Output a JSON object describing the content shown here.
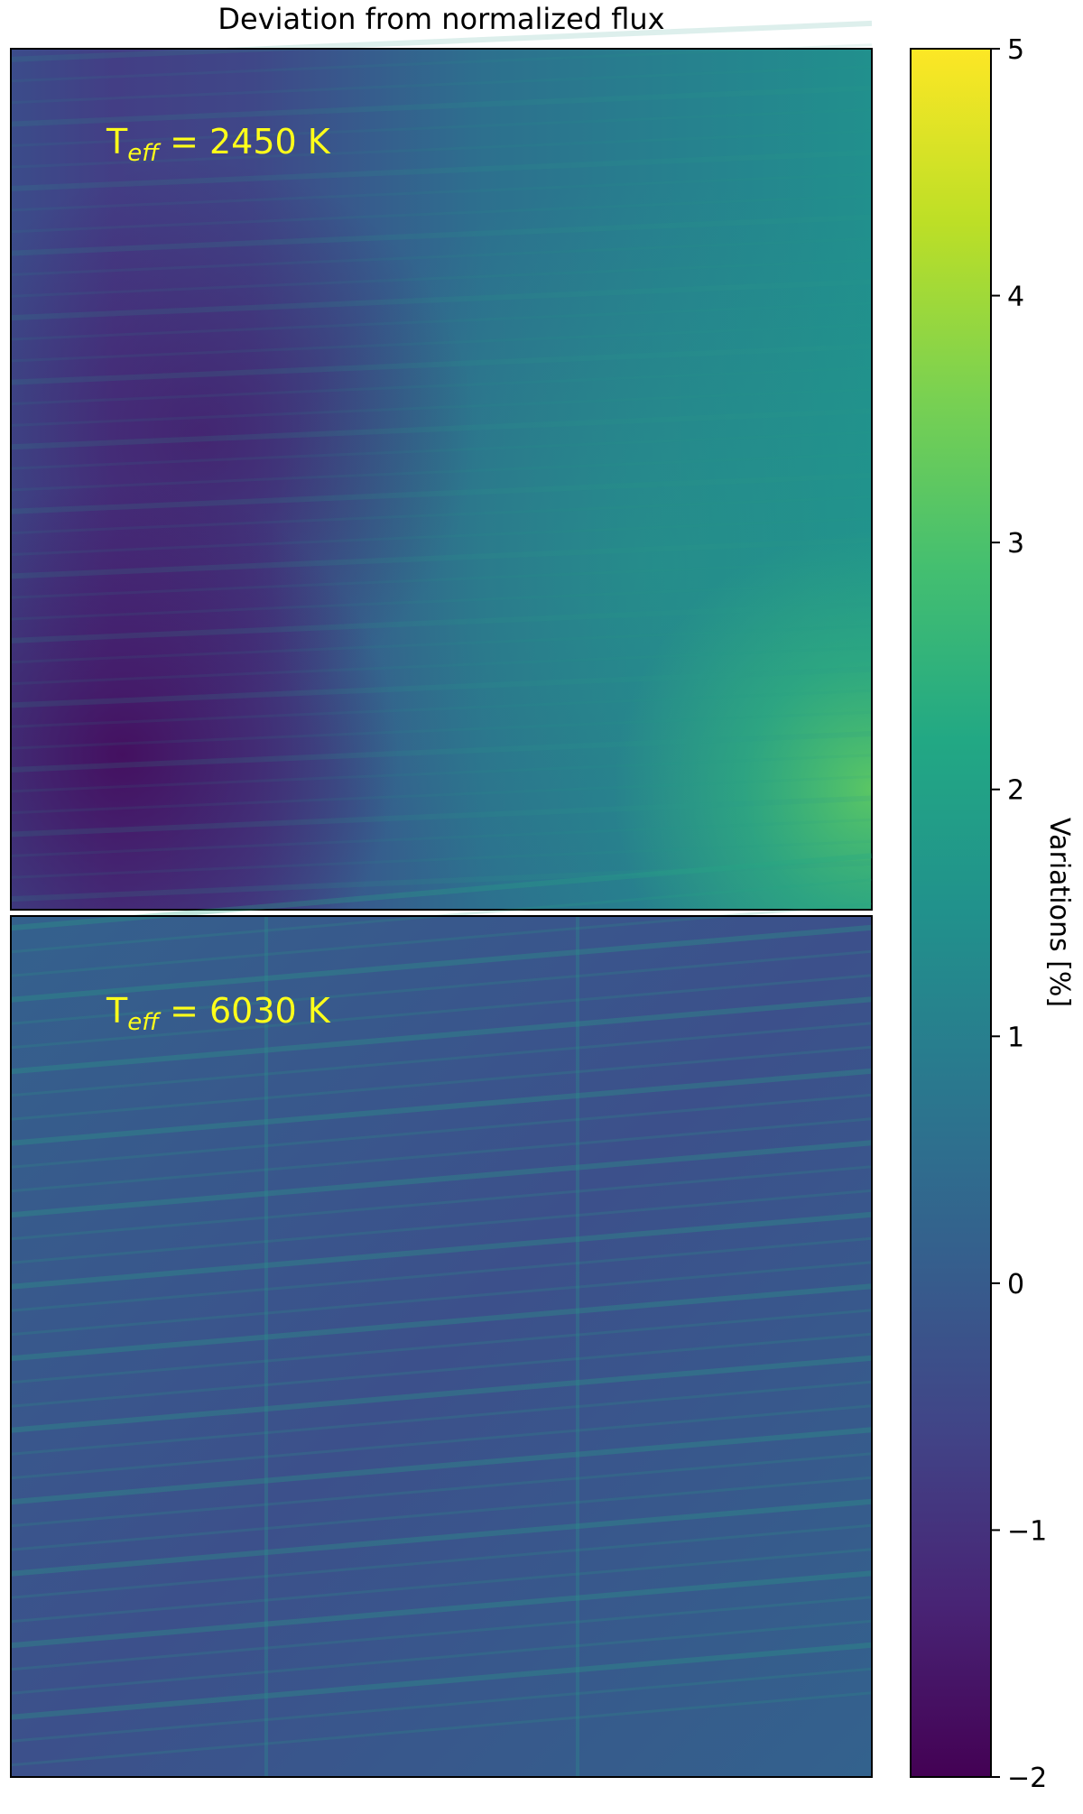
{
  "chart_data": {
    "type": "heatmap",
    "title": "Deviation from normalized flux",
    "colormap": "viridis",
    "grid": false,
    "panels": [
      {
        "label_main": "T",
        "label_sub": "eff",
        "label_rest": " = 2450 K",
        "teff_K": 2450,
        "description_values": {
          "left_region_min_percent": -1.8,
          "center_percent": 0.4,
          "right_edge_max_percent": 2.6
        }
      },
      {
        "label_main": "T",
        "label_sub": "eff",
        "label_rest": " = 6030 K",
        "teff_K": 6030,
        "description_values": {
          "background_percent": 0.3,
          "stripe_max_percent": 1.4
        }
      }
    ],
    "colorbar": {
      "label": "Variations [%]",
      "range": [
        -2,
        5
      ],
      "ticks": [
        5,
        4,
        3,
        2,
        1,
        0,
        -1,
        -2
      ],
      "tick_labels": [
        "5",
        "4",
        "3",
        "2",
        "1",
        "0",
        "−1",
        "−2"
      ]
    }
  }
}
